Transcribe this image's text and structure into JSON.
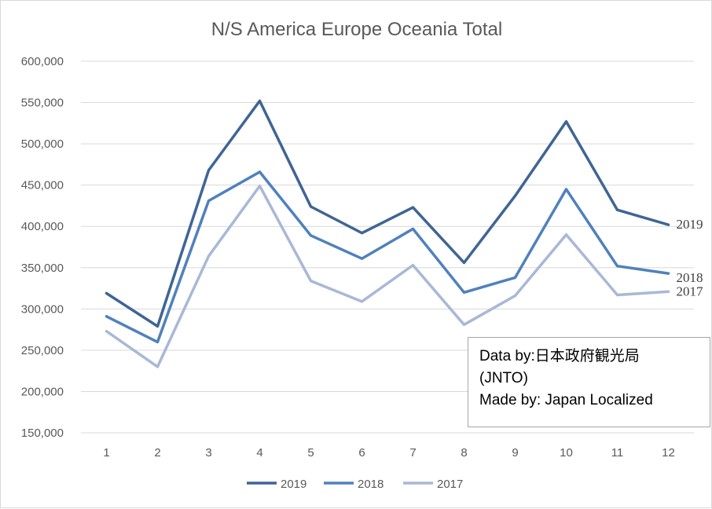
{
  "chart_data": {
    "type": "line",
    "title": "N/S America Europe Oceania Total",
    "xlabel": "",
    "ylabel": "",
    "categories": [
      "1",
      "2",
      "3",
      "4",
      "5",
      "6",
      "7",
      "8",
      "9",
      "10",
      "11",
      "12"
    ],
    "ylim": [
      150000,
      600000
    ],
    "yticks": [
      "150,000",
      "200,000",
      "250,000",
      "300,000",
      "350,000",
      "400,000",
      "450,000",
      "500,000",
      "550,000",
      "600,000"
    ],
    "grid": true,
    "legend_position": "bottom",
    "series": [
      {
        "name": "2019",
        "color": "#3f6595",
        "end_label": "2019",
        "values": [
          319000,
          279000,
          468000,
          552000,
          424000,
          392000,
          423000,
          356000,
          437000,
          527000,
          420000,
          402000
        ]
      },
      {
        "name": "2018",
        "color": "#4f81bd",
        "end_label": "2018",
        "values": [
          291000,
          260000,
          431000,
          466000,
          389000,
          361000,
          397000,
          320000,
          338000,
          445000,
          352000,
          343000
        ]
      },
      {
        "name": "2017",
        "color": "#a9b8d6",
        "end_label": "2017",
        "values": [
          273000,
          230000,
          364000,
          449000,
          334000,
          309000,
          353000,
          281000,
          316000,
          390000,
          317000,
          321000
        ]
      }
    ]
  },
  "note": {
    "line1": "Data by:日本政府観光局",
    "line2": "(JNTO)",
    "line3": "Made by: Japan Localized"
  }
}
